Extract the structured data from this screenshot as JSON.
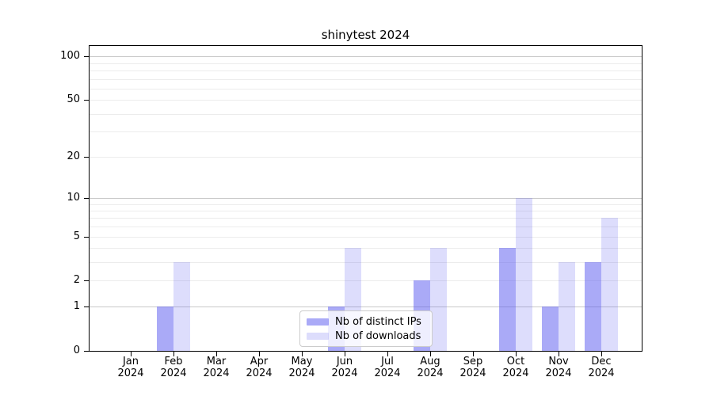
{
  "chart_data": {
    "type": "bar",
    "title": "shinytest 2024",
    "x": {
      "months": [
        "Jan",
        "Feb",
        "Mar",
        "Apr",
        "May",
        "Jun",
        "Jul",
        "Aug",
        "Sep",
        "Oct",
        "Nov",
        "Dec"
      ],
      "year": "2024"
    },
    "series": [
      {
        "name": "Nb of distinct IPs",
        "color": "rgba(85,85,240,0.5)",
        "values": [
          0,
          1,
          0,
          0,
          0,
          1,
          0,
          2,
          0,
          4,
          1,
          3
        ]
      },
      {
        "name": "Nb of downloads",
        "color": "rgba(85,85,240,0.2)",
        "values": [
          0,
          3,
          0,
          0,
          0,
          4,
          0,
          4,
          0,
          10,
          3,
          7
        ]
      }
    ],
    "y_axis": {
      "scale": "log1p",
      "ticks": [
        0,
        1,
        2,
        5,
        10,
        20,
        50,
        100
      ],
      "major_gridlines": [
        1,
        10,
        100
      ],
      "minor_gridlines": [
        2,
        3,
        4,
        5,
        6,
        7,
        8,
        9,
        20,
        30,
        40,
        50,
        60,
        70,
        80,
        90
      ],
      "ylim": [
        0,
        118
      ]
    },
    "legend": {
      "position": "lower center",
      "entries": [
        "Nb of distinct IPs",
        "Nb of downloads"
      ]
    },
    "colors": {
      "bar_distinct_ips": "rgba(85,85,240,0.5)",
      "bar_downloads": "rgba(85,85,240,0.2)",
      "grid_major": "#c9c9c9",
      "grid_minor": "#ececec",
      "axis": "#000000",
      "legend_border": "#cccccc"
    }
  }
}
